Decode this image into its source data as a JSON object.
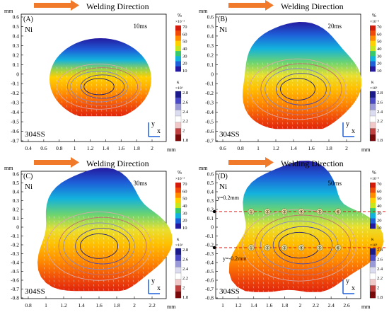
{
  "figure": {
    "panels": [
      {
        "id": "A",
        "label": "(A)",
        "time": "10ms",
        "top_material": "Ni",
        "bottom_material": "304SS",
        "direction": "Welding Direction",
        "y_unit": "mm",
        "x_unit": "mm",
        "y_ticks": [
          "0.6",
          "0.5",
          "0.4",
          "0.3",
          "0.2",
          "0.1",
          "0",
          "-0.1",
          "-0.2",
          "-0.3",
          "-0.4",
          "-0.5",
          "-0.6",
          "-0.7"
        ],
        "x_ticks": [
          "0.4",
          "0.6",
          "0.8",
          "1",
          "1.2",
          "1.4",
          "1.6",
          "1.8",
          "2"
        ],
        "axis_x": "x",
        "axis_y": "y"
      },
      {
        "id": "B",
        "label": "(B)",
        "time": "20ms",
        "top_material": "Ni",
        "bottom_material": "304SS",
        "direction": "Welding Direction",
        "y_unit": "mm",
        "x_unit": "mm",
        "y_ticks": [
          "0.6",
          "0.5",
          "0.4",
          "0.3",
          "0.2",
          "0.1",
          "0",
          "-0.1",
          "-0.2",
          "-0.3",
          "-0.4",
          "-0.5",
          "-0.6",
          "-0.7"
        ],
        "x_ticks": [
          "0.6",
          "0.8",
          "1",
          "1.2",
          "1.4",
          "1.6",
          "1.8",
          "2"
        ],
        "axis_x": "x",
        "axis_y": "y"
      },
      {
        "id": "C",
        "label": "(C)",
        "time": "30ms",
        "top_material": "Ni",
        "bottom_material": "304SS",
        "direction": "Welding Direction",
        "y_unit": "mm",
        "x_unit": "mm",
        "y_ticks": [
          "0.6",
          "0.5",
          "0.4",
          "0.3",
          "0.2",
          "0.1",
          "0",
          "-0.1",
          "-0.2",
          "-0.3",
          "-0.4",
          "-0.5",
          "-0.6",
          "-0.7",
          "-0.8"
        ],
        "x_ticks": [
          "0.8",
          "1",
          "1.2",
          "1.4",
          "1.6",
          "1.8",
          "2",
          "2.2"
        ],
        "axis_x": "x",
        "axis_y": "y"
      },
      {
        "id": "D",
        "label": "(D)",
        "time": "50ms",
        "top_material": "Ni",
        "bottom_material": "304SS",
        "direction": "Welding Direction",
        "y_unit": "mm",
        "x_unit": "mm",
        "y_ticks": [
          "0.6",
          "0.5",
          "0.4",
          "0.3",
          "0.2",
          "0.1",
          "0",
          "-0.1",
          "-0.2",
          "-0.3",
          "-0.4",
          "-0.5",
          "-0.6",
          "-0.7",
          "-0.8"
        ],
        "x_ticks": [
          "1",
          "1.2",
          "1.4",
          "1.6",
          "1.8",
          "2",
          "2.2",
          "2.4",
          "2.6"
        ],
        "axis_x": "x",
        "axis_y": "y",
        "line_upper": "y=0.2mm",
        "line_lower": "y=-0.2mm",
        "points": [
          "①",
          "②",
          "③",
          "④",
          "⑤",
          "⑥"
        ]
      }
    ],
    "colorbar_top": {
      "unit": "%",
      "exponent": "×10⁻³",
      "ticks": [
        "70",
        "60",
        "50",
        "40",
        "30",
        "20",
        "10"
      ],
      "colors": [
        "#d21b0a",
        "#f04a0a",
        "#ff8c00",
        "#ffd000",
        "#c8e61e",
        "#37c86e",
        "#13b2dc",
        "#1e5fd8",
        "#241aa0"
      ]
    },
    "colorbar_bottom": {
      "unit": "κ",
      "exponent": "×10³",
      "ticks": [
        "2.8",
        "2.6",
        "2.4",
        "2.2",
        "2",
        "1.8"
      ],
      "colors": [
        "#1a1a8c",
        "#4a4ac8",
        "#9a9ad8",
        "#dcdcf0",
        "#ffffff",
        "#f0c8c8",
        "#c04040",
        "#7a0a0a"
      ]
    },
    "arrow_color": "#f07a2a"
  }
}
